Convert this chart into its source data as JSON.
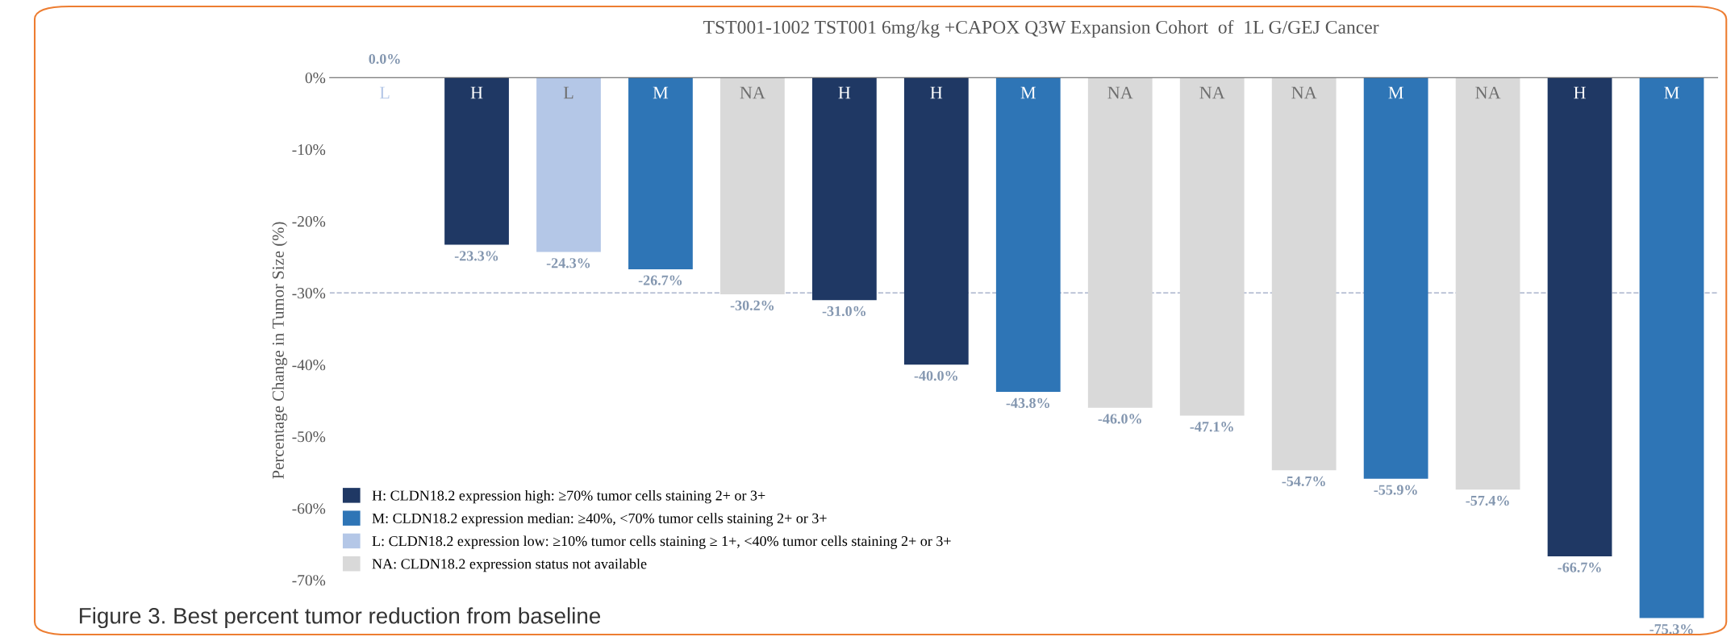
{
  "chart_data": {
    "type": "bar",
    "title": "TST001-1002 TST001 6mg/kg +CAPOX Q3W Expansion Cohort  of  1L G/GEJ Cancer",
    "ylabel": "Percentage Change in Tumor Size (%)",
    "categories": [
      "L",
      "H",
      "L",
      "M",
      "NA",
      "H",
      "H",
      "M",
      "NA",
      "NA",
      "NA",
      "M",
      "NA",
      "H",
      "M"
    ],
    "series": [
      {
        "name": "H: CLDN18.2 expression high: ≥70% tumor cells staining 2+ or 3+",
        "color": "#1f3864",
        "values": [
          null,
          -23.3,
          null,
          null,
          null,
          -31.0,
          -40.0,
          null,
          null,
          null,
          null,
          null,
          null,
          -66.7,
          null
        ],
        "value_labels": [
          null,
          "-23.3%",
          null,
          null,
          null,
          "-31.0%",
          "-40.0%",
          null,
          null,
          null,
          null,
          null,
          null,
          "-66.7%",
          null
        ]
      },
      {
        "name": "M: CLDN18.2 expression median: ≥40%, <70% tumor cells staining 2+ or 3+",
        "color": "#2e75b6",
        "values": [
          null,
          null,
          null,
          -26.7,
          null,
          null,
          null,
          -43.8,
          null,
          null,
          null,
          -55.9,
          null,
          null,
          -75.3
        ],
        "value_labels": [
          null,
          null,
          null,
          "-26.7%",
          null,
          null,
          null,
          "-43.8%",
          null,
          null,
          null,
          "-55.9%",
          null,
          null,
          "-75.3%"
        ]
      },
      {
        "name": "L: CLDN18.2 expression low: ≥10% tumor cells staining ≥ 1+, <40% tumor cells staining 2+ or 3+",
        "color": "#b4c7e7",
        "values": [
          0.0,
          null,
          -24.3,
          null,
          null,
          null,
          null,
          null,
          null,
          null,
          null,
          null,
          null,
          null,
          null
        ],
        "value_labels": [
          "0.0%",
          null,
          "-24.3%",
          null,
          null,
          null,
          null,
          null,
          null,
          null,
          null,
          null,
          null,
          null,
          null
        ]
      },
      {
        "name": "NA: CLDN18.2 expression status not available",
        "color": "#d9d9d9",
        "values": [
          null,
          null,
          null,
          null,
          -30.2,
          null,
          null,
          null,
          -46.0,
          -47.1,
          -54.7,
          null,
          -57.4,
          null,
          null
        ],
        "value_labels": [
          null,
          null,
          null,
          null,
          "-30.2%",
          null,
          null,
          null,
          "-46.0%",
          "-47.1%",
          "-54.7%",
          null,
          "-57.4%",
          null,
          null
        ]
      }
    ],
    "ylim": [
      -76,
      0
    ],
    "yticks": [
      {
        "value": 0,
        "label": "0%"
      },
      {
        "value": -10,
        "label": "-10%"
      },
      {
        "value": -20,
        "label": "-20%"
      },
      {
        "value": -30,
        "label": "-30%"
      },
      {
        "value": -40,
        "label": "-40%"
      },
      {
        "value": -50,
        "label": "-50%"
      },
      {
        "value": -60,
        "label": "-60%"
      },
      {
        "value": -70,
        "label": "-70%"
      }
    ],
    "ref_lines": [
      {
        "axis": "y",
        "value": -30,
        "color": "#aab4cc",
        "line_style": "dashed"
      }
    ],
    "legend": "bottom left",
    "grid": false,
    "annotations": [
      "Figure 3. Best percent tumor reduction from baseline"
    ]
  }
}
